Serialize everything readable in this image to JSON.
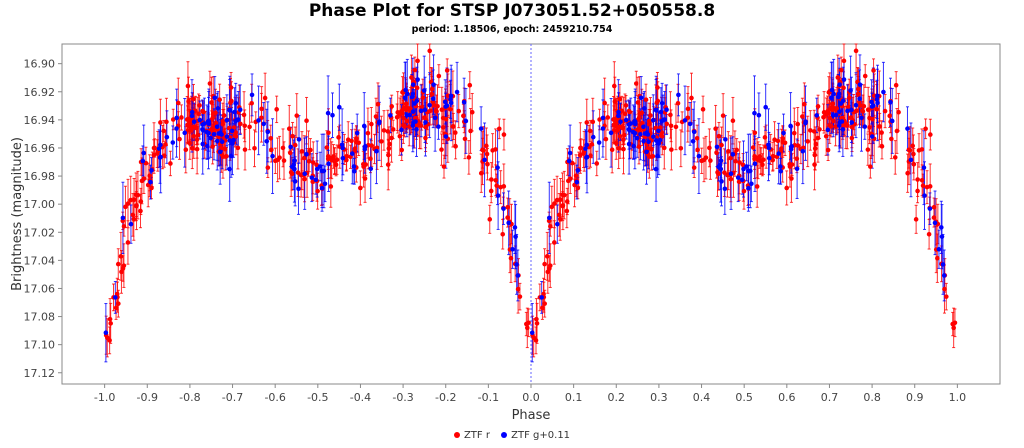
{
  "chart_data": {
    "type": "scatter",
    "title": "Phase Plot for STSP J073051.52+050558.8",
    "subtitle": "period: 1.18506, epoch: 2459210.754",
    "xlabel": "Phase",
    "ylabel": "Brightness (magnitude)",
    "xlim": [
      -1.1,
      1.1
    ],
    "ylim": [
      16.886,
      17.128
    ],
    "y_inverted": true,
    "x_ticks": [
      "-1.0",
      "-0.9",
      "-0.8",
      "-0.7",
      "-0.6",
      "-0.5",
      "-0.4",
      "-0.3",
      "-0.2",
      "-0.1",
      "0.0",
      "0.1",
      "0.2",
      "0.3",
      "0.4",
      "0.5",
      "0.6",
      "0.7",
      "0.8",
      "0.9",
      "1.0"
    ],
    "y_ticks": [
      "16.90",
      "16.92",
      "16.94",
      "16.96",
      "16.98",
      "17.00",
      "17.02",
      "17.04",
      "17.06",
      "17.08",
      "17.10",
      "17.12"
    ],
    "grid": false,
    "legend_position": "bottom",
    "reference_line_x": 0.0,
    "light_curve_profile": [
      [
        0,
        17.09
      ],
      [
        0.02,
        17.075
      ],
      [
        0.05,
        17.02
      ],
      [
        0.1,
        16.975
      ],
      [
        0.17,
        16.945
      ],
      [
        0.22,
        16.94
      ],
      [
        0.26,
        16.945
      ],
      [
        0.28,
        16.95
      ],
      [
        0.3,
        16.945
      ],
      [
        0.34,
        16.94
      ],
      [
        0.45,
        16.965
      ],
      [
        0.5,
        16.975
      ],
      [
        0.55,
        16.965
      ],
      [
        0.62,
        16.955
      ],
      [
        0.67,
        16.945
      ],
      [
        0.72,
        16.93
      ],
      [
        0.76,
        16.925
      ],
      [
        0.8,
        16.935
      ],
      [
        0.86,
        16.945
      ],
      [
        0.9,
        16.97
      ],
      [
        0.93,
        16.99
      ],
      [
        0.96,
        17.03
      ],
      [
        0.98,
        17.07
      ],
      [
        1.0,
        17.09
      ]
    ],
    "series": [
      {
        "name": "ZTF r",
        "color": "#ff0000",
        "n_points": 380,
        "scatter_mag": 0.012,
        "typical_error": 0.012
      },
      {
        "name": "ZTF g+0.11",
        "color": "#0000ff",
        "n_points": 150,
        "scatter_mag": 0.012,
        "typical_error": 0.018
      }
    ]
  },
  "legend": {
    "items": [
      {
        "label": "ZTF r",
        "color": "#ff0000"
      },
      {
        "label": "ZTF g+0.11",
        "color": "#0000ff"
      }
    ]
  }
}
